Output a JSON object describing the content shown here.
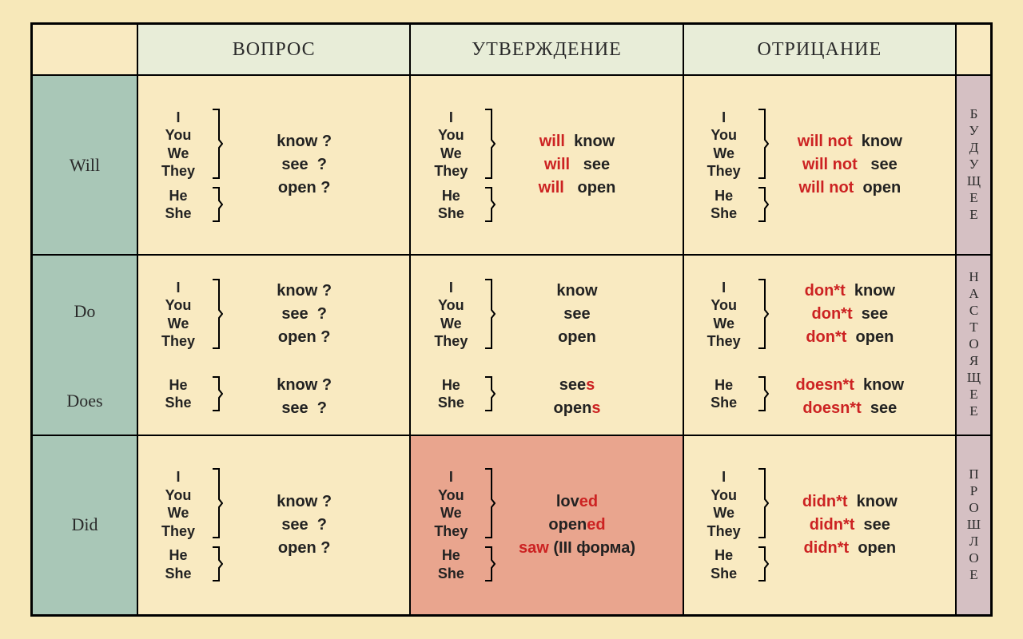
{
  "headers": {
    "q": "ВОПРОС",
    "a": "УТВЕРЖДЕНИЕ",
    "n": "ОТРИЦАНИЕ"
  },
  "rowLabels": {
    "will": "Will",
    "do": "Do",
    "does": "Does",
    "did": "Did"
  },
  "tenses": {
    "future": "БУДУЩЕЕ",
    "present": "НАСТОЯЩЕЕ",
    "past": "ПРОШЛОЕ"
  },
  "pronouns": {
    "all": [
      "I",
      "You",
      "We",
      "They",
      "He",
      "She"
    ],
    "g1": [
      "I",
      "You",
      "We",
      "They"
    ],
    "g2": [
      "He",
      "She"
    ]
  },
  "rows": {
    "will": {
      "q": [
        "know ?",
        "see  ?",
        "open ?"
      ],
      "a": [
        {
          "aux": "will",
          "v": "know"
        },
        {
          "aux": "will",
          "v": " see"
        },
        {
          "aux": "will",
          "v": " open"
        }
      ],
      "n": [
        {
          "aux": "will not",
          "v": "know"
        },
        {
          "aux": "will not",
          "v": " see"
        },
        {
          "aux": "will not",
          "v": "open"
        }
      ]
    },
    "do": {
      "q1": [
        "know ?",
        "see  ?",
        "open ?"
      ],
      "q2": [
        "know ?",
        "see  ?"
      ],
      "a1": [
        "know",
        "see",
        "open"
      ],
      "a2": [
        {
          "stem": "see",
          "suf": "s"
        },
        {
          "stem": "open",
          "suf": "s"
        }
      ],
      "n1": [
        {
          "aux": "don*t",
          "v": "know"
        },
        {
          "aux": "don*t",
          "v": "see"
        },
        {
          "aux": "don*t",
          "v": "open"
        }
      ],
      "n2": [
        {
          "aux": "doesn*t",
          "v": "know"
        },
        {
          "aux": "doesn*t",
          "v": "see"
        }
      ]
    },
    "did": {
      "q": [
        "know ?",
        "see  ?",
        "open ?"
      ],
      "a": [
        {
          "stem": "lov",
          "suf": "ed",
          "extra": ""
        },
        {
          "stem": "open",
          "suf": "ed",
          "extra": ""
        },
        {
          "stem": "",
          "suf": "saw",
          "extra": " (III форма)"
        }
      ],
      "n": [
        {
          "aux": "didn*t",
          "v": "know"
        },
        {
          "aux": "didn*t",
          "v": "see"
        },
        {
          "aux": "didn*t",
          "v": "open"
        }
      ]
    }
  },
  "colors": {
    "bg": "#f7e8b9",
    "cell": "#f9eac1",
    "header": "#e8edd8",
    "left": "#a9c7b7",
    "right": "#d5c0c3",
    "highlight": "#e9a58e",
    "red": "#c22",
    "border": "#000"
  }
}
